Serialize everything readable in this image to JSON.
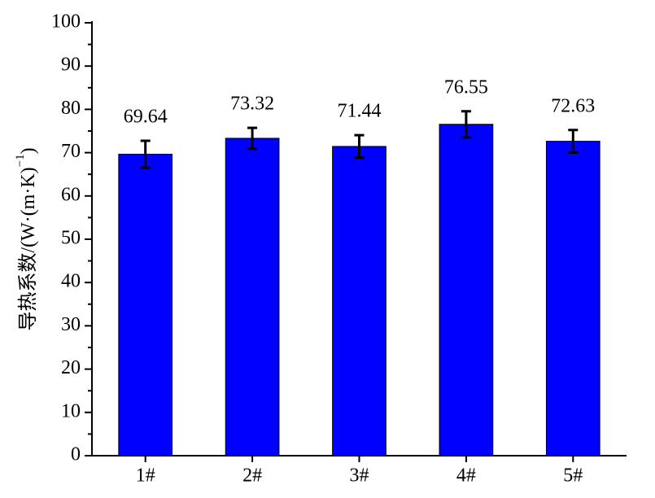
{
  "chart_data": {
    "type": "bar",
    "y_label": "导热系数/(W·(m·K)",
    "y_label_sup": "−1",
    "y_label_end": ")",
    "categories": [
      "1#",
      "2#",
      "3#",
      "4#",
      "5#"
    ],
    "values": [
      69.64,
      73.32,
      71.44,
      76.55,
      72.63
    ],
    "errors": [
      3.1,
      2.4,
      2.6,
      3.0,
      2.6
    ],
    "color": "#0000ff",
    "ylim": [
      0,
      100
    ],
    "yticks": [
      0,
      10,
      20,
      30,
      40,
      50,
      60,
      70,
      80,
      90,
      100
    ]
  }
}
